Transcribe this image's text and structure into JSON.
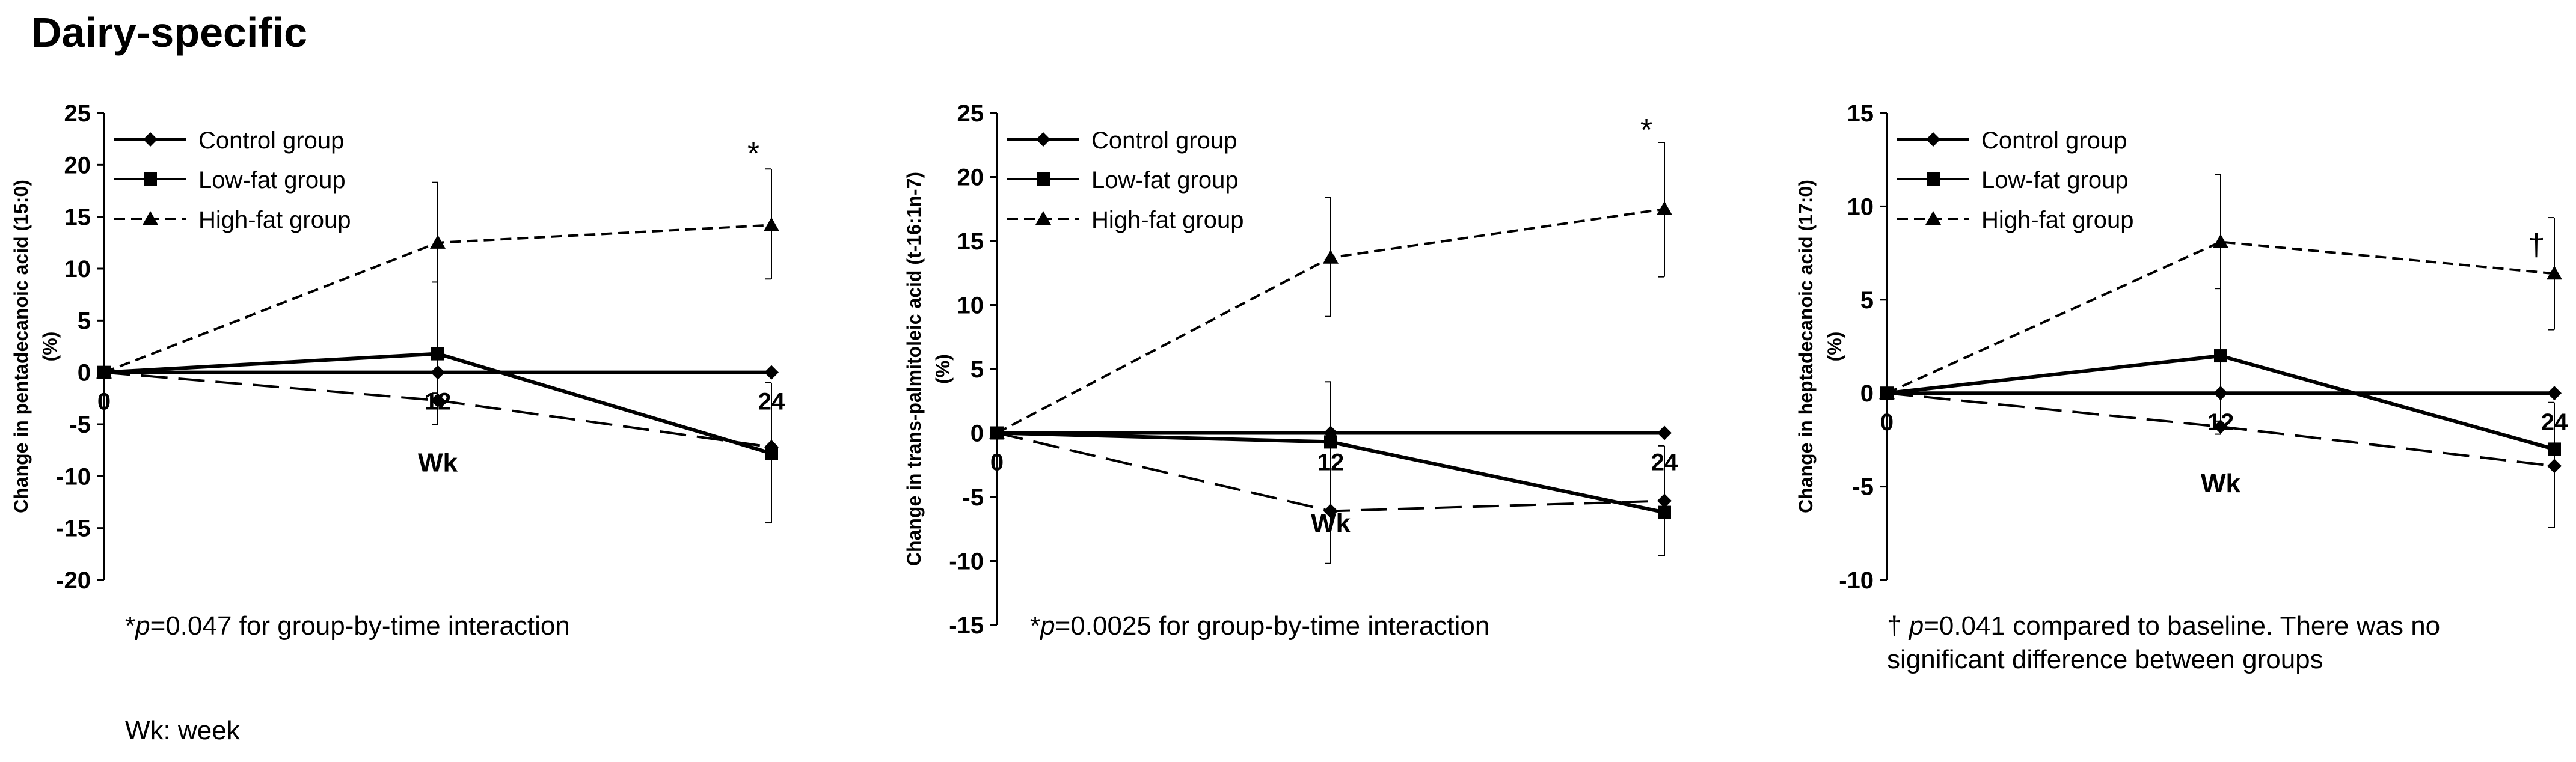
{
  "title": "Dairy-specific",
  "colors": {
    "ink": "#000000",
    "background": "#ffffff"
  },
  "chart_data": [
    {
      "type": "line",
      "xlabel": "Wk",
      "ylabel_lines": [
        "Change in pentadecanoic acid (15:0)",
        "(%)"
      ],
      "x": [
        0,
        12,
        24
      ],
      "x_tick_labels": [
        "0",
        "12",
        "24"
      ],
      "ylim": [
        -20,
        25
      ],
      "y_ticks": [
        -20,
        -15,
        -10,
        -5,
        0,
        5,
        10,
        15,
        20,
        25
      ],
      "legend": "top-left",
      "series": [
        {
          "name": "Control group",
          "style": "solid",
          "marker": "diamond",
          "values": [
            0,
            0,
            0
          ]
        },
        {
          "name": "Low-fat group",
          "style": "solid",
          "marker": "square",
          "values": [
            0,
            1.8,
            -7.8
          ]
        },
        {
          "name": "High-fat group",
          "style": "dashed",
          "marker": "triangle",
          "values": [
            0,
            12.5,
            14.2
          ]
        }
      ],
      "extra_lines": [
        {
          "style": "longdash",
          "marker": "diamond",
          "values": [
            0,
            -2.7,
            -7.2
          ]
        }
      ],
      "error_bars": [
        {
          "x": 12,
          "low": -5,
          "high": 18.3
        },
        {
          "x": 12,
          "low": -2,
          "high": 8.7
        },
        {
          "x": 24,
          "low": 9,
          "high": 19.6
        },
        {
          "x": 24,
          "low": -14.5,
          "high": -1
        }
      ],
      "annotations": [
        {
          "x": 24,
          "y": 21,
          "text": "*"
        }
      ],
      "footnote": {
        "symbol": "*",
        "var": "p",
        "text": "=0.047 for group-by-time interaction"
      },
      "footnote2": "Wk: week"
    },
    {
      "type": "line",
      "xlabel": "Wk",
      "ylabel_lines": [
        "Change in trans-palmitoleic acid (t-16:1n-7)",
        "(%)"
      ],
      "x": [
        0,
        12,
        24
      ],
      "x_tick_labels": [
        "0",
        "12",
        "24"
      ],
      "ylim": [
        -15,
        25
      ],
      "y_ticks": [
        -15,
        -10,
        -5,
        0,
        5,
        10,
        15,
        20,
        25
      ],
      "legend": "top-left",
      "series": [
        {
          "name": "Control group",
          "style": "solid",
          "marker": "diamond",
          "values": [
            0,
            0,
            0
          ]
        },
        {
          "name": "Low-fat group",
          "style": "solid",
          "marker": "square",
          "values": [
            0,
            -0.7,
            -6.2
          ]
        },
        {
          "name": "High-fat group",
          "style": "dashed",
          "marker": "triangle",
          "values": [
            0,
            13.7,
            17.5
          ]
        }
      ],
      "extra_lines": [
        {
          "style": "longdash",
          "marker": "diamond",
          "values": [
            0,
            -6.1,
            -5.3
          ]
        }
      ],
      "error_bars": [
        {
          "x": 12,
          "low": 9.1,
          "high": 18.4
        },
        {
          "x": 12,
          "low": -10.2,
          "high": 4
        },
        {
          "x": 24,
          "low": 12.2,
          "high": 22.7
        },
        {
          "x": 24,
          "low": -9.6,
          "high": -1
        }
      ],
      "annotations": [
        {
          "x": 24,
          "y": 23.6,
          "text": "*"
        }
      ],
      "footnote": {
        "symbol": "*",
        "var": "p",
        "text": "=0.0025 for group-by-time interaction"
      }
    },
    {
      "type": "line",
      "xlabel": "Wk",
      "ylabel_lines": [
        "Change in heptadecanoic acid (17:0)",
        "(%)"
      ],
      "x": [
        0,
        12,
        24
      ],
      "x_tick_labels": [
        "0",
        "12",
        "24"
      ],
      "ylim": [
        -10,
        15
      ],
      "y_ticks": [
        -10,
        -5,
        0,
        5,
        10,
        15
      ],
      "legend": "top-left",
      "series": [
        {
          "name": "Control group",
          "style": "solid",
          "marker": "diamond",
          "values": [
            0,
            0,
            0
          ]
        },
        {
          "name": "Low-fat group",
          "style": "solid",
          "marker": "square",
          "values": [
            0,
            2,
            -3
          ]
        },
        {
          "name": "High-fat group",
          "style": "dashed",
          "marker": "triangle",
          "values": [
            0,
            8.1,
            6.4
          ]
        }
      ],
      "extra_lines": [
        {
          "style": "longdash",
          "marker": "diamond",
          "values": [
            0,
            -1.8,
            -3.9
          ]
        }
      ],
      "error_bars": [
        {
          "x": 12,
          "low": -1.5,
          "high": 11.7
        },
        {
          "x": 12,
          "low": -2.2,
          "high": 5.6
        },
        {
          "x": 24,
          "low": 3.4,
          "high": 9.4
        },
        {
          "x": 24,
          "low": -7.2,
          "high": -0.5
        }
      ],
      "annotations": [
        {
          "x": 24,
          "y": 7.9,
          "text": "†"
        }
      ],
      "footnote": {
        "symbol": "† ",
        "var": "p",
        "text": "=0.041 compared to baseline. There was no significant difference between groups"
      }
    }
  ]
}
